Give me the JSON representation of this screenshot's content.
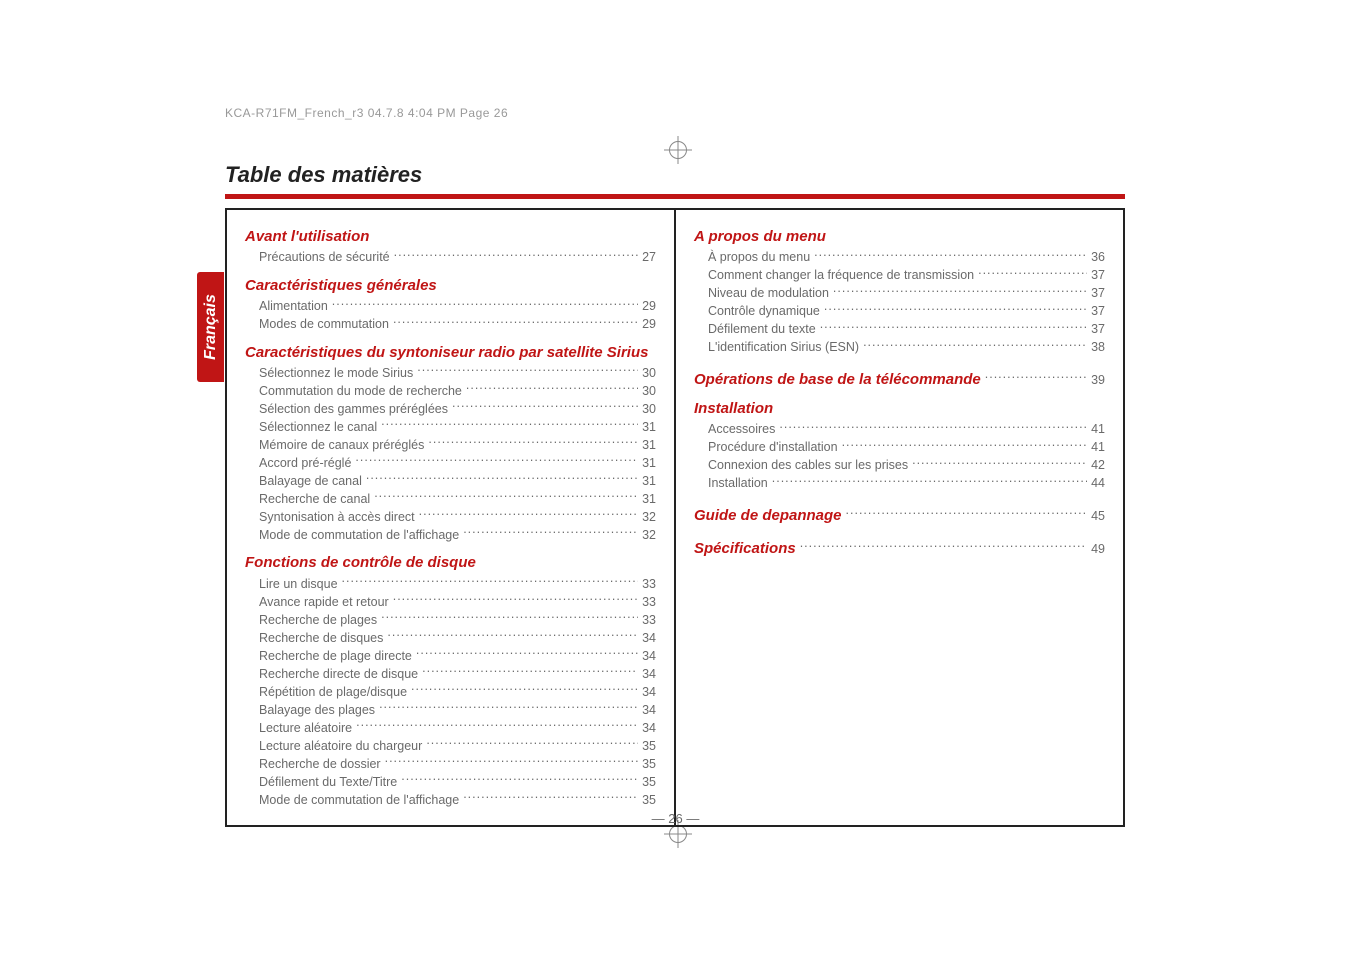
{
  "meta": {
    "header_text": "KCA-R71FM_French_r3  04.7.8  4:04 PM  Page 26"
  },
  "title": "Table des matières",
  "side_tab": "Français",
  "page_number": "— 26 —",
  "left_column": [
    {
      "type": "group",
      "heading": "Avant l'utilisation",
      "items": [
        {
          "label": "Précautions de sécurité",
          "page": "27"
        }
      ]
    },
    {
      "type": "group",
      "heading": "Caractéristiques générales",
      "items": [
        {
          "label": "Alimentation",
          "page": "29"
        },
        {
          "label": "Modes de commutation",
          "page": "29"
        }
      ]
    },
    {
      "type": "group",
      "heading": "Caractéristiques du syntoniseur radio par satellite Sirius",
      "items": [
        {
          "label": "Sélectionnez le mode Sirius",
          "page": "30"
        },
        {
          "label": "Commutation du mode de recherche",
          "page": "30"
        },
        {
          "label": "Sélection des gammes préréglées",
          "page": "30"
        },
        {
          "label": "Sélectionnez le canal",
          "page": "31"
        },
        {
          "label": "Mémoire de canaux préréglés",
          "page": "31"
        },
        {
          "label": "Accord pré-réglé",
          "page": "31"
        },
        {
          "label": "Balayage de canal",
          "page": "31"
        },
        {
          "label": "Recherche de canal",
          "page": "31"
        },
        {
          "label": "Syntonisation à accès direct",
          "page": "32"
        },
        {
          "label": "Mode de commutation de l'affichage",
          "page": "32"
        }
      ]
    },
    {
      "type": "group",
      "heading": "Fonctions de contrôle de disque",
      "items": [
        {
          "label": "Lire un disque",
          "page": "33"
        },
        {
          "label": "Avance rapide et retour",
          "page": "33"
        },
        {
          "label": "Recherche de plages",
          "page": "33"
        },
        {
          "label": "Recherche de disques",
          "page": "34"
        },
        {
          "label": "Recherche de plage directe",
          "page": "34"
        },
        {
          "label": "Recherche directe de disque",
          "page": "34"
        },
        {
          "label": "Répétition de plage/disque",
          "page": "34"
        },
        {
          "label": "Balayage des plages",
          "page": "34"
        },
        {
          "label": "Lecture aléatoire",
          "page": "34"
        },
        {
          "label": "Lecture aléatoire du chargeur",
          "page": "35"
        },
        {
          "label": "Recherche de dossier",
          "page": "35"
        },
        {
          "label": "Défilement du Texte/Titre",
          "page": "35"
        },
        {
          "label": "Mode de commutation de l'affichage",
          "page": "35"
        }
      ]
    }
  ],
  "right_column": [
    {
      "type": "group",
      "heading": "A propos du menu",
      "items": [
        {
          "label": "À propos du menu",
          "page": "36"
        },
        {
          "label": "Comment changer la fréquence de transmission",
          "page": "37"
        },
        {
          "label": "Niveau de modulation",
          "page": "37"
        },
        {
          "label": "Contrôle dynamique",
          "page": "37"
        },
        {
          "label": "Défilement du texte",
          "page": "37"
        },
        {
          "label": "L'identification Sirius (ESN)",
          "page": "38"
        }
      ]
    },
    {
      "type": "heading_line",
      "label": "Opérations de base de la télécommande",
      "page": "39"
    },
    {
      "type": "group",
      "heading": "Installation",
      "items": [
        {
          "label": "Accessoires",
          "page": "41"
        },
        {
          "label": "Procédure d'installation",
          "page": "41"
        },
        {
          "label": "Connexion des cables sur les prises",
          "page": "42"
        },
        {
          "label": "Installation",
          "page": "44"
        }
      ]
    },
    {
      "type": "heading_line",
      "label": "Guide de depannage",
      "page": "45"
    },
    {
      "type": "heading_line",
      "label": "Spécifications",
      "page": "49"
    }
  ]
}
